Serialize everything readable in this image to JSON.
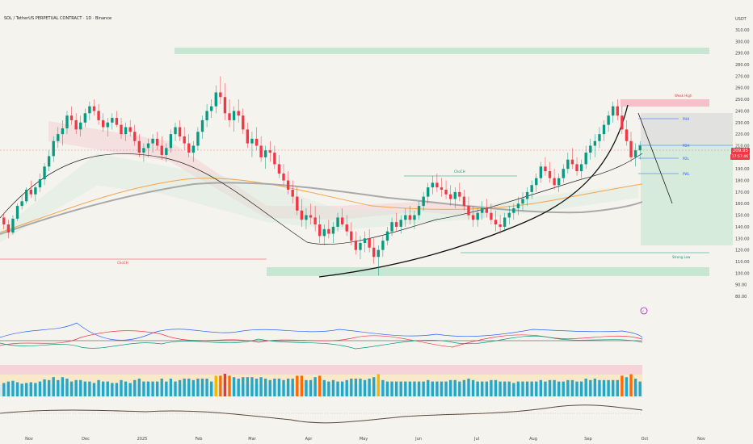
{
  "header": {
    "title": "SOL / TetherUS PERPETUAL CONTRACT · 1D · Binance",
    "currency": "USDT"
  },
  "colors": {
    "up": "#089981",
    "down": "#f23645",
    "zone_green": "#bfe3cf",
    "zone_red": "#f5b3c1",
    "ma_orange": "#f7a34a",
    "ma_gray": "#a9a9a9"
  },
  "chart_data": {
    "type": "candlestick",
    "y_ticks": [
      "310.00",
      "300.00",
      "290.00",
      "280.00",
      "270.00",
      "260.00",
      "250.00",
      "240.00",
      "230.00",
      "220.00",
      "210.00",
      "200.00",
      "190.00",
      "180.00",
      "170.00",
      "160.00",
      "150.00",
      "140.00",
      "130.00",
      "120.00",
      "110.00",
      "100.00",
      "90.00",
      "80.00"
    ],
    "ylim": [
      80,
      310
    ],
    "x_ticks": [
      "Nov",
      "Dec",
      "2025",
      "Feb",
      "Mar",
      "Apr",
      "May",
      "Jun",
      "Jul",
      "Aug",
      "Sep",
      "Oct",
      "Nov"
    ],
    "last_price": "209.95",
    "countdown": "17:57:46",
    "labels": {
      "choch_left": "ChoCH",
      "choch_mid": "ChoCH",
      "phh": "PHH",
      "pdh": "PDH",
      "pdl": "PDL",
      "pwl": "PWL",
      "weak_high": "Weak High",
      "strong_low": "Strong Low"
    },
    "candles": [
      [
        148,
        152,
        138,
        142
      ],
      [
        142,
        146,
        130,
        135
      ],
      [
        135,
        150,
        133,
        147
      ],
      [
        147,
        160,
        145,
        158
      ],
      [
        158,
        168,
        155,
        162
      ],
      [
        162,
        174,
        160,
        172
      ],
      [
        172,
        180,
        165,
        168
      ],
      [
        168,
        176,
        162,
        174
      ],
      [
        174,
        186,
        170,
        181
      ],
      [
        181,
        195,
        176,
        192
      ],
      [
        192,
        206,
        188,
        201
      ],
      [
        201,
        218,
        196,
        214
      ],
      [
        214,
        226,
        208,
        220
      ],
      [
        220,
        232,
        210,
        225
      ],
      [
        225,
        240,
        220,
        236
      ],
      [
        236,
        244,
        228,
        232
      ],
      [
        232,
        238,
        220,
        224
      ],
      [
        224,
        236,
        218,
        230
      ],
      [
        230,
        242,
        226,
        238
      ],
      [
        238,
        248,
        232,
        244
      ],
      [
        244,
        250,
        236,
        240
      ],
      [
        240,
        246,
        228,
        232
      ],
      [
        232,
        238,
        222,
        226
      ],
      [
        226,
        234,
        218,
        230
      ],
      [
        230,
        238,
        224,
        234
      ],
      [
        234,
        240,
        226,
        228
      ],
      [
        228,
        234,
        216,
        220
      ],
      [
        220,
        230,
        214,
        226
      ],
      [
        226,
        232,
        218,
        222
      ],
      [
        222,
        228,
        210,
        214
      ],
      [
        214,
        220,
        200,
        204
      ],
      [
        204,
        212,
        196,
        208
      ],
      [
        208,
        216,
        200,
        212
      ],
      [
        212,
        220,
        204,
        216
      ],
      [
        216,
        222,
        206,
        210
      ],
      [
        210,
        218,
        198,
        202
      ],
      [
        202,
        212,
        196,
        208
      ],
      [
        208,
        224,
        204,
        220
      ],
      [
        220,
        230,
        214,
        226
      ],
      [
        226,
        232,
        214,
        218
      ],
      [
        218,
        226,
        206,
        212
      ],
      [
        212,
        220,
        200,
        204
      ],
      [
        204,
        214,
        196,
        210
      ],
      [
        210,
        226,
        206,
        222
      ],
      [
        222,
        236,
        216,
        232
      ],
      [
        232,
        246,
        226,
        240
      ],
      [
        240,
        250,
        234,
        244
      ],
      [
        244,
        262,
        238,
        256
      ],
      [
        256,
        270,
        246,
        252
      ],
      [
        252,
        264,
        232,
        238
      ],
      [
        238,
        250,
        226,
        232
      ],
      [
        232,
        244,
        222,
        240
      ],
      [
        240,
        250,
        230,
        236
      ],
      [
        236,
        242,
        220,
        224
      ],
      [
        224,
        230,
        208,
        212
      ],
      [
        212,
        222,
        200,
        216
      ],
      [
        216,
        226,
        206,
        210
      ],
      [
        210,
        218,
        196,
        200
      ],
      [
        200,
        210,
        190,
        206
      ],
      [
        206,
        214,
        196,
        204
      ],
      [
        204,
        210,
        190,
        194
      ],
      [
        194,
        202,
        182,
        186
      ],
      [
        186,
        194,
        176,
        180
      ],
      [
        180,
        188,
        168,
        172
      ],
      [
        172,
        180,
        160,
        166
      ],
      [
        166,
        174,
        150,
        154
      ],
      [
        154,
        164,
        140,
        146
      ],
      [
        146,
        156,
        138,
        150
      ],
      [
        150,
        160,
        142,
        148
      ],
      [
        148,
        158,
        136,
        142
      ],
      [
        142,
        150,
        126,
        132
      ],
      [
        132,
        142,
        124,
        138
      ],
      [
        138,
        146,
        130,
        134
      ],
      [
        134,
        144,
        126,
        140
      ],
      [
        140,
        152,
        136,
        148
      ],
      [
        148,
        156,
        140,
        142
      ],
      [
        142,
        150,
        132,
        136
      ],
      [
        136,
        144,
        124,
        128
      ],
      [
        128,
        136,
        116,
        120
      ],
      [
        120,
        132,
        112,
        126
      ],
      [
        126,
        136,
        118,
        130
      ],
      [
        130,
        138,
        118,
        122
      ],
      [
        122,
        130,
        108,
        114
      ],
      [
        114,
        124,
        98,
        120
      ],
      [
        120,
        132,
        114,
        128
      ],
      [
        128,
        140,
        124,
        136
      ],
      [
        136,
        148,
        132,
        144
      ],
      [
        144,
        152,
        136,
        140
      ],
      [
        140,
        150,
        134,
        146
      ],
      [
        146,
        156,
        140,
        150
      ],
      [
        150,
        158,
        142,
        146
      ],
      [
        146,
        154,
        138,
        150
      ],
      [
        150,
        162,
        146,
        158
      ],
      [
        158,
        170,
        154,
        166
      ],
      [
        166,
        178,
        160,
        174
      ],
      [
        174,
        184,
        168,
        178
      ],
      [
        178,
        186,
        170,
        174
      ],
      [
        174,
        182,
        166,
        172
      ],
      [
        172,
        180,
        164,
        168
      ],
      [
        168,
        176,
        158,
        164
      ],
      [
        164,
        174,
        156,
        170
      ],
      [
        170,
        178,
        162,
        166
      ],
      [
        166,
        172,
        154,
        158
      ],
      [
        158,
        166,
        146,
        150
      ],
      [
        150,
        158,
        140,
        146
      ],
      [
        146,
        156,
        140,
        152
      ],
      [
        152,
        162,
        146,
        156
      ],
      [
        156,
        164,
        148,
        152
      ],
      [
        152,
        160,
        142,
        146
      ],
      [
        146,
        154,
        136,
        142
      ],
      [
        142,
        150,
        134,
        140
      ],
      [
        140,
        152,
        136,
        148
      ],
      [
        148,
        158,
        142,
        152
      ],
      [
        152,
        160,
        146,
        156
      ],
      [
        156,
        166,
        150,
        160
      ],
      [
        160,
        170,
        154,
        164
      ],
      [
        164,
        174,
        158,
        170
      ],
      [
        170,
        180,
        164,
        176
      ],
      [
        176,
        186,
        170,
        182
      ],
      [
        182,
        196,
        178,
        192
      ],
      [
        192,
        200,
        184,
        188
      ],
      [
        188,
        196,
        178,
        182
      ],
      [
        182,
        190,
        172,
        176
      ],
      [
        176,
        186,
        170,
        182
      ],
      [
        182,
        194,
        178,
        190
      ],
      [
        190,
        204,
        186,
        198
      ],
      [
        198,
        208,
        190,
        194
      ],
      [
        194,
        200,
        184,
        188
      ],
      [
        188,
        198,
        182,
        194
      ],
      [
        194,
        210,
        190,
        204
      ],
      [
        204,
        216,
        198,
        210
      ],
      [
        210,
        220,
        200,
        214
      ],
      [
        214,
        226,
        208,
        220
      ],
      [
        220,
        232,
        214,
        228
      ],
      [
        228,
        240,
        222,
        236
      ],
      [
        236,
        248,
        230,
        244
      ],
      [
        244,
        250,
        232,
        236
      ],
      [
        236,
        244,
        220,
        224
      ],
      [
        224,
        232,
        210,
        214
      ],
      [
        214,
        222,
        196,
        200
      ],
      [
        200,
        212,
        192,
        206
      ],
      [
        206,
        214,
        198,
        210
      ]
    ]
  }
}
